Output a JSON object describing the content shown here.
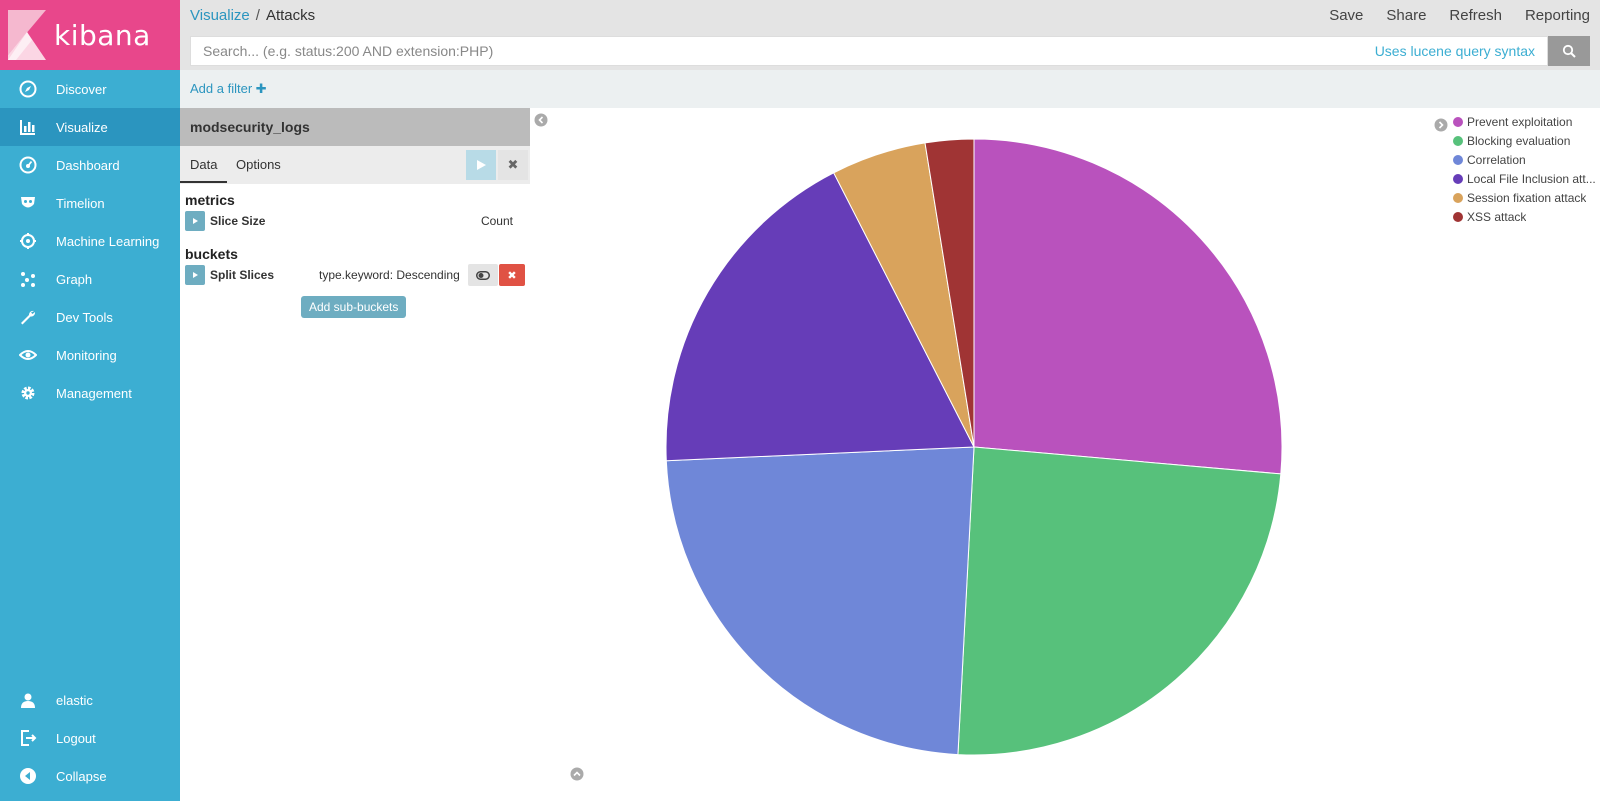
{
  "app": {
    "name": "kibana"
  },
  "sidebar": {
    "items": [
      {
        "label": "Discover",
        "icon": "compass-icon",
        "active": false
      },
      {
        "label": "Visualize",
        "icon": "bar-chart-icon",
        "active": true
      },
      {
        "label": "Dashboard",
        "icon": "dashboard-gauge-icon",
        "active": false
      },
      {
        "label": "Timelion",
        "icon": "timelion-mask-icon",
        "active": false
      },
      {
        "label": "Machine Learning",
        "icon": "machine-learning-icon",
        "active": false
      },
      {
        "label": "Graph",
        "icon": "graph-icon",
        "active": false
      },
      {
        "label": "Dev Tools",
        "icon": "wrench-icon",
        "active": false
      },
      {
        "label": "Monitoring",
        "icon": "eye-icon",
        "active": false
      },
      {
        "label": "Management",
        "icon": "gear-icon",
        "active": false
      }
    ],
    "bottom": [
      {
        "label": "elastic",
        "icon": "user-icon"
      },
      {
        "label": "Logout",
        "icon": "logout-icon"
      },
      {
        "label": "Collapse",
        "icon": "collapse-icon"
      }
    ]
  },
  "header": {
    "breadcrumb_parent": "Visualize",
    "breadcrumb_sep": "/",
    "breadcrumb_current": "Attacks",
    "actions": [
      "Save",
      "Share",
      "Refresh",
      "Reporting"
    ]
  },
  "search": {
    "placeholder": "Search... (e.g. status:200 AND extension:PHP)",
    "syntax_link": "Uses lucene query syntax"
  },
  "filters": {
    "add_label": "Add a filter"
  },
  "editor": {
    "index": "modsecurity_logs",
    "tabs": [
      "Data",
      "Options"
    ],
    "metrics_heading": "metrics",
    "metric": {
      "label": "Slice Size",
      "value": "Count"
    },
    "buckets_heading": "buckets",
    "bucket": {
      "label": "Split Slices",
      "value": "type.keyword: Descending"
    },
    "add_sub_buckets": "Add sub-buckets"
  },
  "chart_data": {
    "type": "pie",
    "categories": [
      "Prevent exploitation",
      "Blocking evaluation",
      "Correlation",
      "Local File Inclusion att...",
      "Session fixation attack",
      "XSS attack"
    ],
    "values": [
      27.0,
      25.0,
      24.0,
      18.6,
      5.1,
      2.6
    ],
    "colors": [
      "#b952bd",
      "#57c17b",
      "#6f87d8",
      "#663db8",
      "#d9a35c",
      "#a03434"
    ],
    "legend_position": "top-right"
  }
}
